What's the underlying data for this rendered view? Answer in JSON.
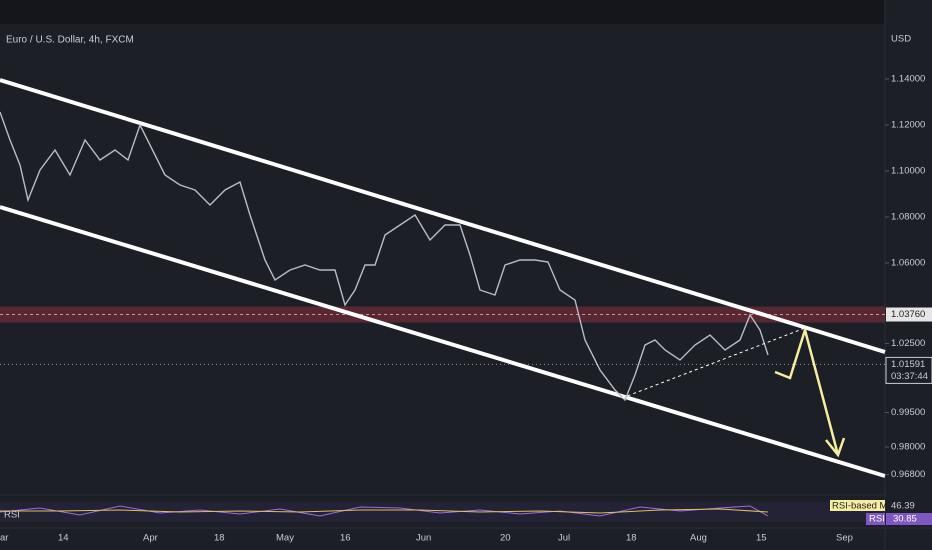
{
  "header": {
    "title": "Euro / U.S. Dollar, 4h, FXCM",
    "currency": "USD"
  },
  "price_axis": {
    "ylim": [
      0.95,
      1.16
    ],
    "ticks": [
      {
        "value": 1.14,
        "label": "1.14000"
      },
      {
        "value": 1.12,
        "label": "1.12000"
      },
      {
        "value": 1.1,
        "label": "1.10000"
      },
      {
        "value": 1.08,
        "label": "1.08000"
      },
      {
        "value": 1.06,
        "label": "1.06000"
      },
      {
        "value": 1.025,
        "label": "1.02500"
      },
      {
        "value": 0.995,
        "label": "0.99500"
      },
      {
        "value": 0.98,
        "label": "0.98000"
      },
      {
        "value": 0.968,
        "label": "0.96800"
      }
    ],
    "level": {
      "value": 1.0376,
      "label": "1.03760"
    },
    "current_price": {
      "value": 1.01591,
      "label": "1.01591"
    },
    "countdown": "03:37:44"
  },
  "time_axis": {
    "labels": [
      "ar",
      "14",
      "Apr",
      "18",
      "May",
      "16",
      "Jun",
      "20",
      "Jul",
      "18",
      "Aug",
      "15",
      "Sep"
    ]
  },
  "rsi": {
    "label": "RSI",
    "ma_label": "RSI-based MA",
    "ma_value": 46.39,
    "value_label": "RSI",
    "value": 30.85
  }
}
